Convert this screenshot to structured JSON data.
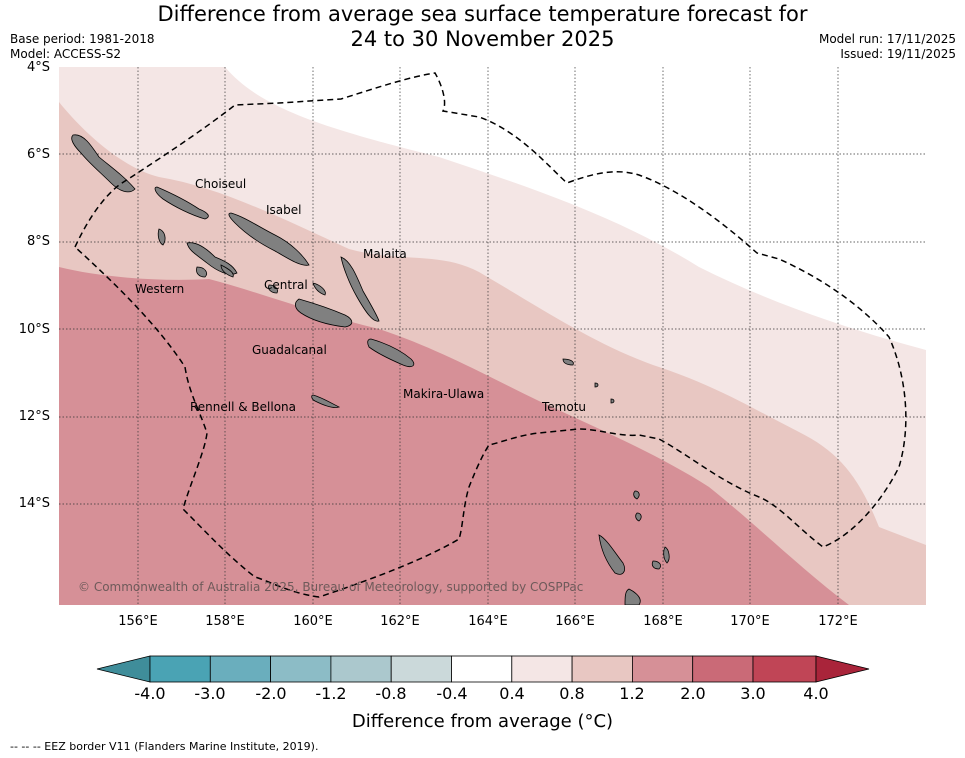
{
  "title_line1": "Difference from average sea surface temperature forecast for",
  "title_line2": "24 to 30 November 2025",
  "base_period": "Base period: 1981-2018",
  "model": "Model: ACCESS-S2",
  "model_run": "Model run: 17/11/2025",
  "issued": "Issued: 19/11/2025",
  "lat_labels": [
    "4°S",
    "6°S",
    "8°S",
    "10°S",
    "12°S",
    "14°S"
  ],
  "lon_labels": [
    "156°E",
    "158°E",
    "160°E",
    "162°E",
    "164°E",
    "166°E",
    "168°E",
    "170°E",
    "172°E"
  ],
  "places": {
    "choiseul": "Choiseul",
    "isabel": "Isabel",
    "malaita": "Malaita",
    "western": "Western",
    "central": "Central",
    "guadalcanal": "Guadalcanal",
    "makira_ulawa": "Makira-Ulawa",
    "temotu": "Temotu",
    "rennell_bellona": "Rennell & Bellona"
  },
  "copyright": "© Commonwealth of Australia 2025, Bureau of Meteorology, supported by COSPPac",
  "colorbar": {
    "title": "Difference from average (°C)",
    "tick_labels": [
      "-4.0",
      "-3.0",
      "-2.0",
      "-1.2",
      "-0.8",
      "-0.4",
      "0.4",
      "0.8",
      "1.2",
      "2.0",
      "3.0",
      "4.0"
    ],
    "colors": {
      "under": "#3f8d9a",
      "b1": "#4aa3b4",
      "b2": "#6aaebd",
      "b3": "#8cbcc6",
      "b4": "#abc8cd",
      "b5": "#cbd9da",
      "b6": "#ffffff",
      "b7": "#f4e6e5",
      "b8": "#e8c7c2",
      "b9": "#d69097",
      "b10": "#ca6a77",
      "b11": "#c04556",
      "over": "#a9243a"
    }
  },
  "map_colors": {
    "band_0_4": "#f4e6e5",
    "band_0_8": "#e8c7c2",
    "band_1_2": "#d69097",
    "land": "#808080",
    "eez": "#000000"
  },
  "footnote": "--  --  -- EEZ border V11 (Flanders Marine Institute, 2019)."
}
